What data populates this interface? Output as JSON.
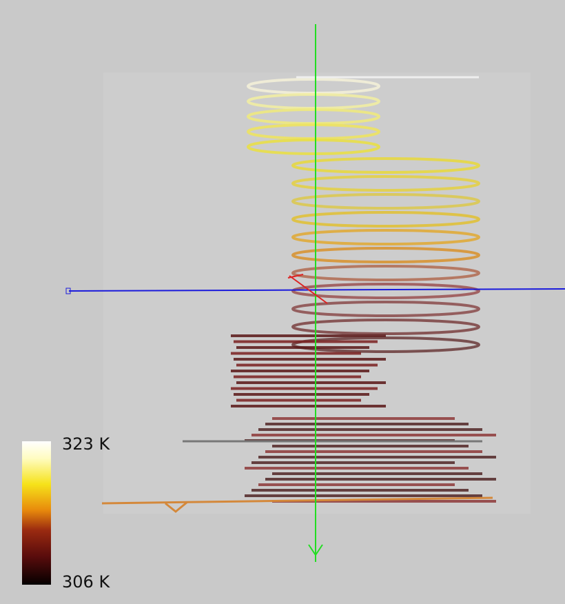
{
  "colorbar": {
    "max_label": "323 K",
    "min_label": "306 K"
  }
}
